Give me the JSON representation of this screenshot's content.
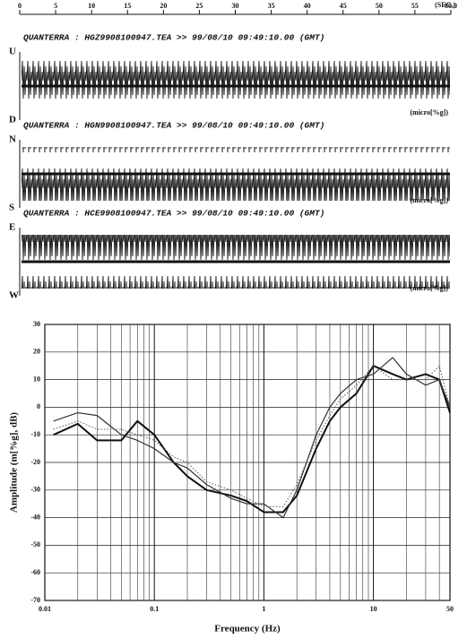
{
  "top_axis": {
    "xlim": [
      0,
      60
    ],
    "xticks": [
      0,
      5,
      10,
      15,
      20,
      25,
      30,
      35,
      40,
      45,
      50,
      55,
      {
        "value": 60,
        "label": "60.0"
      }
    ],
    "unit": "(SEC.)"
  },
  "traces": [
    {
      "header": "QUANTERRA : HGZ9908100947.TEA >> 99/08/10 09:49:10.00 (GMT)",
      "top_label": "U",
      "bottom_label": "D",
      "unit": "(micro[%g])"
    },
    {
      "header": "QUANTERRA : HGN9908100947.TEA >> 99/08/10 09:49:10.00 (GMT)",
      "top_label": "N",
      "bottom_label": "S",
      "unit": "(micro[%g])"
    },
    {
      "header": "QUANTERRA : HCE9908100947.TEA >> 99/08/10 09:49:10.00 (GMT)",
      "top_label": "E",
      "bottom_label": "W",
      "unit": "(micro[%g])"
    }
  ],
  "chart_data": {
    "type": "line",
    "xlabel": "Frequency (Hz)",
    "ylabel": "Amplitude (m[%g], dB)",
    "xscale": "log",
    "xlim": [
      0.01,
      50
    ],
    "xticks": [
      0.01,
      0.1,
      1,
      10,
      50
    ],
    "xminorticks": [
      0.02,
      0.03,
      0.04,
      0.05,
      0.06,
      0.07,
      0.08,
      0.09,
      0.2,
      0.3,
      0.4,
      0.5,
      0.6,
      0.7,
      0.8,
      0.9,
      2,
      3,
      4,
      5,
      6,
      7,
      8,
      9,
      20,
      30,
      40
    ],
    "ylim": [
      -70,
      30
    ],
    "yticks": [
      -70,
      -60,
      -50,
      -40,
      -30,
      -20,
      -10,
      0,
      10,
      20,
      30
    ],
    "grid": true,
    "x": [
      0.012,
      0.02,
      0.03,
      0.05,
      0.07,
      0.1,
      0.15,
      0.2,
      0.3,
      0.5,
      0.7,
      1,
      1.5,
      2,
      3,
      4,
      5,
      7,
      10,
      15,
      20,
      30,
      40,
      50
    ],
    "series": [
      {
        "color": "#111111",
        "style": "solid",
        "width": 2,
        "values": [
          -10,
          -6,
          -12,
          -12,
          -5,
          -10,
          -20,
          -25,
          -30,
          -32,
          -34,
          -38,
          -38,
          -32,
          -15,
          -5,
          0,
          5,
          15,
          12,
          10,
          12,
          10,
          -2
        ]
      },
      {
        "color": "#333333",
        "style": "solid",
        "width": 1.2,
        "values": [
          -5,
          -2,
          -3,
          -10,
          -12,
          -15,
          -20,
          -22,
          -28,
          -33,
          -35,
          -35,
          -40,
          -30,
          -10,
          0,
          5,
          10,
          12,
          18,
          12,
          8,
          10,
          0
        ]
      },
      {
        "color": "#555555",
        "style": "dotted",
        "width": 1,
        "values": [
          -8,
          -5,
          -8,
          -8,
          -10,
          -12,
          -18,
          -20,
          -27,
          -30,
          -33,
          -36,
          -36,
          -28,
          -12,
          -3,
          3,
          8,
          15,
          10,
          10,
          10,
          15,
          0
        ]
      }
    ]
  }
}
